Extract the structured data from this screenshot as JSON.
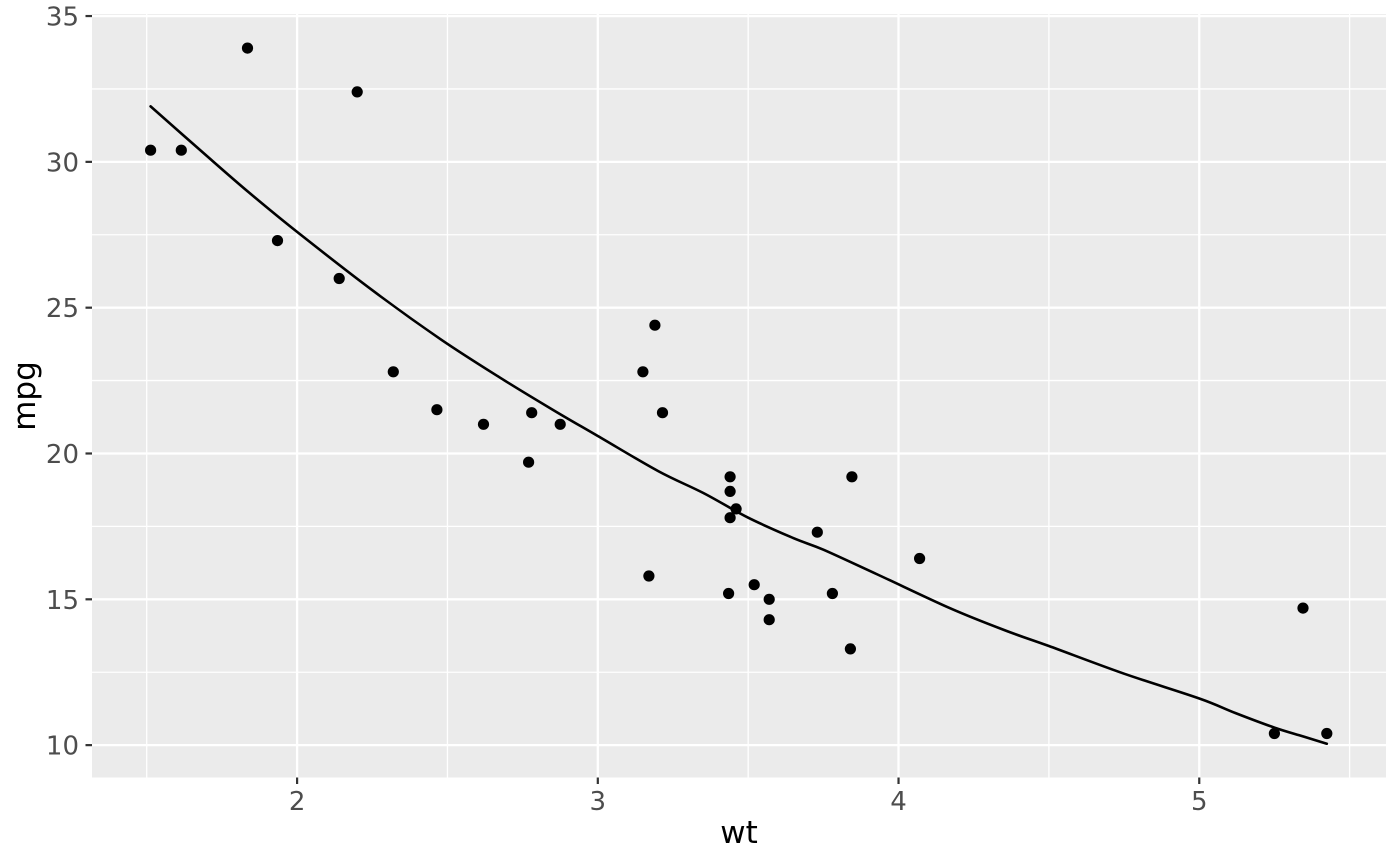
{
  "chart_data": {
    "type": "scatter",
    "title": "",
    "xlabel": "wt",
    "ylabel": "mpg",
    "x_ticks": [
      2,
      3,
      4,
      5
    ],
    "y_ticks": [
      10,
      15,
      20,
      25,
      30,
      35
    ],
    "x_minor_gridlines": [
      1.5,
      2.5,
      3.5,
      4.5,
      5.5
    ],
    "y_minor_gridlines": [
      12.5,
      17.5,
      22.5,
      27.5,
      32.5
    ],
    "xlim": [
      1.318,
      5.621
    ],
    "ylim": [
      8.89,
      35.07
    ],
    "grid": true,
    "legend_position": "none",
    "points": [
      [
        2.62,
        21.0
      ],
      [
        2.875,
        21.0
      ],
      [
        2.32,
        22.8
      ],
      [
        3.215,
        21.4
      ],
      [
        3.44,
        18.7
      ],
      [
        3.46,
        18.1
      ],
      [
        3.57,
        14.3
      ],
      [
        3.19,
        24.4
      ],
      [
        3.15,
        22.8
      ],
      [
        3.44,
        19.2
      ],
      [
        3.44,
        17.8
      ],
      [
        4.07,
        16.4
      ],
      [
        3.73,
        17.3
      ],
      [
        3.78,
        15.2
      ],
      [
        5.25,
        10.4
      ],
      [
        5.424,
        10.4
      ],
      [
        5.345,
        14.7
      ],
      [
        2.2,
        32.4
      ],
      [
        1.615,
        30.4
      ],
      [
        1.835,
        33.9
      ],
      [
        2.465,
        21.5
      ],
      [
        3.52,
        15.5
      ],
      [
        3.435,
        15.2
      ],
      [
        3.84,
        13.3
      ],
      [
        3.845,
        19.2
      ],
      [
        1.935,
        27.3
      ],
      [
        2.14,
        26.0
      ],
      [
        1.513,
        30.4
      ],
      [
        3.17,
        15.8
      ],
      [
        2.77,
        19.7
      ],
      [
        3.57,
        15.0
      ],
      [
        2.78,
        21.4
      ]
    ],
    "smooth_line": [
      [
        1.513,
        31.9
      ],
      [
        1.7,
        30.2
      ],
      [
        1.84,
        28.95
      ],
      [
        2.0,
        27.6
      ],
      [
        2.25,
        25.6
      ],
      [
        2.48,
        23.9
      ],
      [
        2.675,
        22.6
      ],
      [
        2.85,
        21.5
      ],
      [
        3.0,
        20.6
      ],
      [
        3.2,
        19.4
      ],
      [
        3.35,
        18.65
      ],
      [
        3.5,
        17.8
      ],
      [
        3.65,
        17.1
      ],
      [
        3.75,
        16.7
      ],
      [
        3.93,
        15.85
      ],
      [
        4.17,
        14.7
      ],
      [
        4.35,
        13.95
      ],
      [
        4.5,
        13.4
      ],
      [
        4.75,
        12.45
      ],
      [
        5.0,
        11.6
      ],
      [
        5.12,
        11.1
      ],
      [
        5.25,
        10.6
      ],
      [
        5.345,
        10.3
      ],
      [
        5.424,
        10.05
      ]
    ],
    "colors": {
      "panel_background": "#EBEBEB",
      "gridline": "#FFFFFF",
      "point": "#000000",
      "smooth_line": "#000000",
      "tick_label": "#4D4D4D",
      "tick_mark": "#333333",
      "axis_title": "#000000",
      "figure_background": "#FFFFFF"
    }
  }
}
